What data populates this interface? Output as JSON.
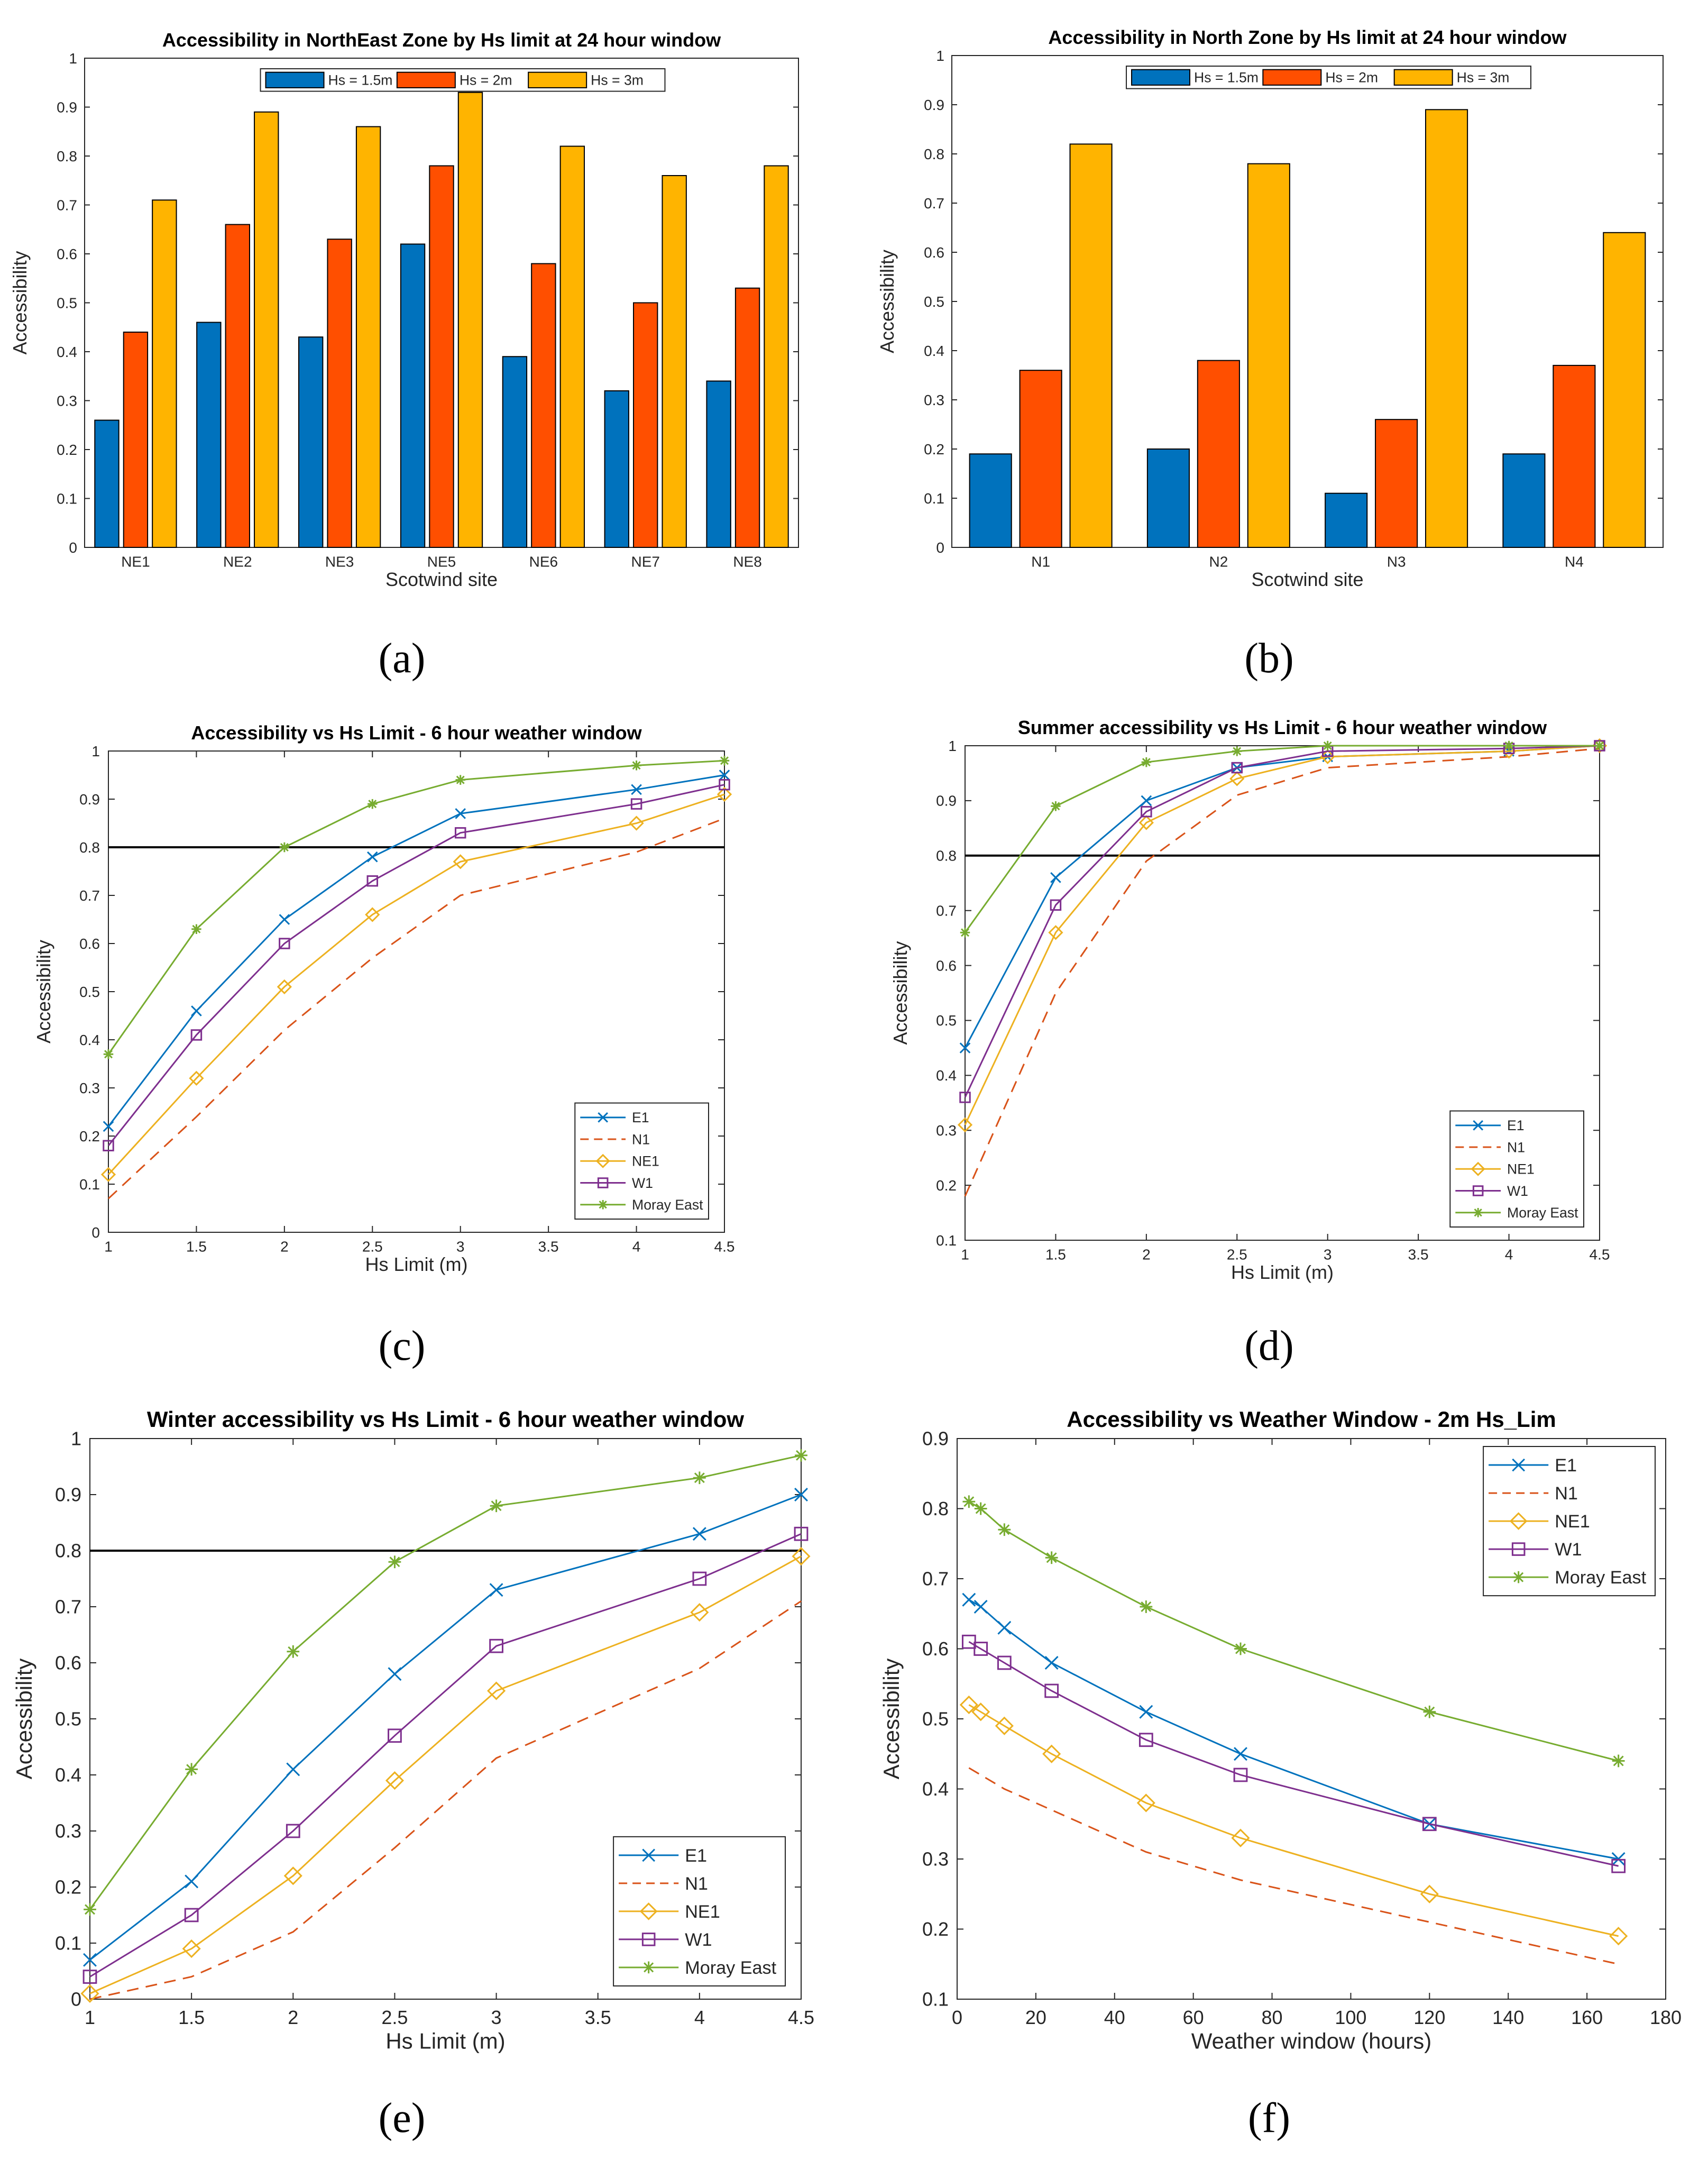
{
  "chart_data": [
    {
      "id": "a",
      "type": "bar",
      "caption": "(a)",
      "title": "Accessibility in NorthEast Zone by Hs limit at 24 hour window",
      "xlabel": "Scotwind site",
      "ylabel": "Accessibility",
      "ylim": [
        0,
        1
      ],
      "yticks": [
        "0",
        "0.1",
        "0.2",
        "0.3",
        "0.4",
        "0.5",
        "0.6",
        "0.7",
        "0.8",
        "0.9",
        "1"
      ],
      "categories": [
        "NE1",
        "NE2",
        "NE3",
        "NE5",
        "NE6",
        "NE7",
        "NE8"
      ],
      "legend_position": "top-center",
      "series": [
        {
          "name": "Hs = 1.5m",
          "color": "#0072BD",
          "values": [
            0.26,
            0.46,
            0.43,
            0.62,
            0.39,
            0.32,
            0.34
          ]
        },
        {
          "name": "Hs = 2m",
          "color": "#FF4F00",
          "values": [
            0.44,
            0.66,
            0.63,
            0.78,
            0.58,
            0.5,
            0.53
          ]
        },
        {
          "name": "Hs = 3m",
          "color": "#FFB400",
          "values": [
            0.71,
            0.89,
            0.86,
            0.93,
            0.82,
            0.76,
            0.78
          ]
        }
      ]
    },
    {
      "id": "b",
      "type": "bar",
      "caption": "(b)",
      "title": "Accessibility in North Zone by Hs limit at 24 hour window",
      "xlabel": "Scotwind site",
      "ylabel": "Accessibility",
      "ylim": [
        0,
        1
      ],
      "yticks": [
        "0",
        "0.1",
        "0.2",
        "0.3",
        "0.4",
        "0.5",
        "0.6",
        "0.7",
        "0.8",
        "0.9",
        "1"
      ],
      "categories": [
        "N1",
        "N2",
        "N3",
        "N4"
      ],
      "legend_position": "top-center",
      "series": [
        {
          "name": "Hs = 1.5m",
          "color": "#0072BD",
          "values": [
            0.19,
            0.2,
            0.11,
            0.19
          ]
        },
        {
          "name": "Hs = 2m",
          "color": "#FF4F00",
          "values": [
            0.36,
            0.38,
            0.26,
            0.37
          ]
        },
        {
          "name": "Hs = 3m",
          "color": "#FFB400",
          "values": [
            0.82,
            0.78,
            0.89,
            0.64
          ]
        }
      ]
    },
    {
      "id": "c",
      "type": "line",
      "caption": "(c)",
      "title": "Accessibility vs Hs Limit - 6 hour weather window",
      "xlabel": "Hs Limit (m)",
      "ylabel": "Accessibility",
      "xlim": [
        1,
        4.5
      ],
      "ylim": [
        0,
        1
      ],
      "xticks": [
        "1",
        "1.5",
        "2",
        "2.5",
        "3",
        "3.5",
        "4",
        "4.5"
      ],
      "yticks": [
        "0",
        "0.1",
        "0.2",
        "0.3",
        "0.4",
        "0.5",
        "0.6",
        "0.7",
        "0.8",
        "0.9",
        "1"
      ],
      "hline": 0.8,
      "legend_position": "bottom-right",
      "x": [
        1,
        1.5,
        2,
        2.5,
        3,
        4,
        4.5
      ],
      "series": [
        {
          "name": "E1",
          "color": "#0072BD",
          "marker": "x",
          "dash": false,
          "values": [
            0.22,
            0.46,
            0.65,
            0.78,
            0.87,
            0.92,
            0.95
          ]
        },
        {
          "name": "N1",
          "color": "#D95319",
          "marker": "none",
          "dash": true,
          "values": [
            0.07,
            0.24,
            0.42,
            0.57,
            0.7,
            0.79,
            0.86
          ]
        },
        {
          "name": "NE1",
          "color": "#EDB120",
          "marker": "diamond",
          "dash": false,
          "values": [
            0.12,
            0.32,
            0.51,
            0.66,
            0.77,
            0.85,
            0.91
          ]
        },
        {
          "name": "W1",
          "color": "#7E2F8E",
          "marker": "square",
          "dash": false,
          "values": [
            0.18,
            0.41,
            0.6,
            0.73,
            0.83,
            0.89,
            0.93
          ]
        },
        {
          "name": "Moray East",
          "color": "#77AC30",
          "marker": "star",
          "dash": false,
          "values": [
            0.37,
            0.63,
            0.8,
            0.89,
            0.94,
            0.97,
            0.98
          ]
        }
      ]
    },
    {
      "id": "d",
      "type": "line",
      "caption": "(d)",
      "title": "Summer accessibility vs Hs Limit - 6 hour weather window",
      "xlabel": "Hs Limit (m)",
      "ylabel": "Accessibility",
      "xlim": [
        1,
        4.5
      ],
      "ylim": [
        0.1,
        1
      ],
      "xticks": [
        "1",
        "1.5",
        "2",
        "2.5",
        "3",
        "3.5",
        "4",
        "4.5"
      ],
      "yticks": [
        "0.1",
        "0.2",
        "0.3",
        "0.4",
        "0.5",
        "0.6",
        "0.7",
        "0.8",
        "0.9",
        "1"
      ],
      "hline": 0.8,
      "legend_position": "bottom-right",
      "x": [
        1,
        1.5,
        2,
        2.5,
        3,
        4,
        4.5
      ],
      "series": [
        {
          "name": "E1",
          "color": "#0072BD",
          "marker": "x",
          "dash": false,
          "values": [
            0.45,
            0.76,
            0.9,
            0.96,
            0.98,
            0.99,
            1.0
          ]
        },
        {
          "name": "N1",
          "color": "#D95319",
          "marker": "none",
          "dash": true,
          "values": [
            0.18,
            0.55,
            0.79,
            0.91,
            0.96,
            0.98,
            0.995
          ]
        },
        {
          "name": "NE1",
          "color": "#EDB120",
          "marker": "diamond",
          "dash": false,
          "values": [
            0.31,
            0.66,
            0.86,
            0.94,
            0.98,
            0.99,
            1.0
          ]
        },
        {
          "name": "W1",
          "color": "#7E2F8E",
          "marker": "square",
          "dash": false,
          "values": [
            0.36,
            0.71,
            0.88,
            0.96,
            0.99,
            0.995,
            1.0
          ]
        },
        {
          "name": "Moray East",
          "color": "#77AC30",
          "marker": "star",
          "dash": false,
          "values": [
            0.66,
            0.89,
            0.97,
            0.99,
            1.0,
            1.0,
            1.0
          ]
        }
      ]
    },
    {
      "id": "e",
      "type": "line",
      "caption": "(e)",
      "title": "Winter accessibility vs Hs Limit - 6 hour weather window",
      "xlabel": "Hs Limit (m)",
      "ylabel": "Accessibility",
      "xlim": [
        1,
        4.5
      ],
      "ylim": [
        0,
        1
      ],
      "xticks": [
        "1",
        "1.5",
        "2",
        "2.5",
        "3",
        "3.5",
        "4",
        "4.5"
      ],
      "yticks": [
        "0",
        "0.1",
        "0.2",
        "0.3",
        "0.4",
        "0.5",
        "0.6",
        "0.7",
        "0.8",
        "0.9",
        "1"
      ],
      "hline": 0.8,
      "legend_position": "bottom-right",
      "x": [
        1,
        1.5,
        2,
        2.5,
        3,
        4,
        4.5
      ],
      "series": [
        {
          "name": "E1",
          "color": "#0072BD",
          "marker": "x",
          "dash": false,
          "values": [
            0.07,
            0.21,
            0.41,
            0.58,
            0.73,
            0.83,
            0.9
          ]
        },
        {
          "name": "N1",
          "color": "#D95319",
          "marker": "none",
          "dash": true,
          "values": [
            0.0,
            0.04,
            0.12,
            0.27,
            0.43,
            0.59,
            0.71
          ]
        },
        {
          "name": "NE1",
          "color": "#EDB120",
          "marker": "diamond",
          "dash": false,
          "values": [
            0.01,
            0.09,
            0.22,
            0.39,
            0.55,
            0.69,
            0.79
          ]
        },
        {
          "name": "W1",
          "color": "#7E2F8E",
          "marker": "square",
          "dash": false,
          "values": [
            0.04,
            0.15,
            0.3,
            0.47,
            0.63,
            0.75,
            0.83
          ]
        },
        {
          "name": "Moray East",
          "color": "#77AC30",
          "marker": "star",
          "dash": false,
          "values": [
            0.16,
            0.41,
            0.62,
            0.78,
            0.88,
            0.93,
            0.97
          ]
        }
      ]
    },
    {
      "id": "f",
      "type": "line",
      "caption": "(f)",
      "title": "Accessibility vs Weather Window - 2m Hs_Lim",
      "xlabel": "Weather window (hours)",
      "ylabel": "Accessibility",
      "xlim": [
        0,
        180
      ],
      "ylim": [
        0.1,
        0.9
      ],
      "xticks": [
        "0",
        "20",
        "40",
        "60",
        "80",
        "100",
        "120",
        "140",
        "160",
        "180"
      ],
      "yticks": [
        "0.1",
        "0.2",
        "0.3",
        "0.4",
        "0.5",
        "0.6",
        "0.7",
        "0.8",
        "0.9"
      ],
      "legend_position": "top-right",
      "x": [
        3,
        6,
        12,
        24,
        48,
        72,
        120,
        168
      ],
      "series": [
        {
          "name": "E1",
          "color": "#0072BD",
          "marker": "x",
          "dash": false,
          "values": [
            0.67,
            0.66,
            0.63,
            0.58,
            0.51,
            0.45,
            0.35,
            0.3
          ]
        },
        {
          "name": "N1",
          "color": "#D95319",
          "marker": "none",
          "dash": true,
          "values": [
            0.43,
            0.42,
            0.4,
            0.37,
            0.31,
            0.27,
            0.21,
            0.15
          ]
        },
        {
          "name": "NE1",
          "color": "#EDB120",
          "marker": "diamond",
          "dash": false,
          "values": [
            0.52,
            0.51,
            0.49,
            0.45,
            0.38,
            0.33,
            0.25,
            0.19
          ]
        },
        {
          "name": "W1",
          "color": "#7E2F8E",
          "marker": "square",
          "dash": false,
          "values": [
            0.61,
            0.6,
            0.58,
            0.54,
            0.47,
            0.42,
            0.35,
            0.29
          ]
        },
        {
          "name": "Moray East",
          "color": "#77AC30",
          "marker": "star",
          "dash": false,
          "values": [
            0.81,
            0.8,
            0.77,
            0.73,
            0.66,
            0.6,
            0.51,
            0.44
          ]
        }
      ]
    }
  ]
}
